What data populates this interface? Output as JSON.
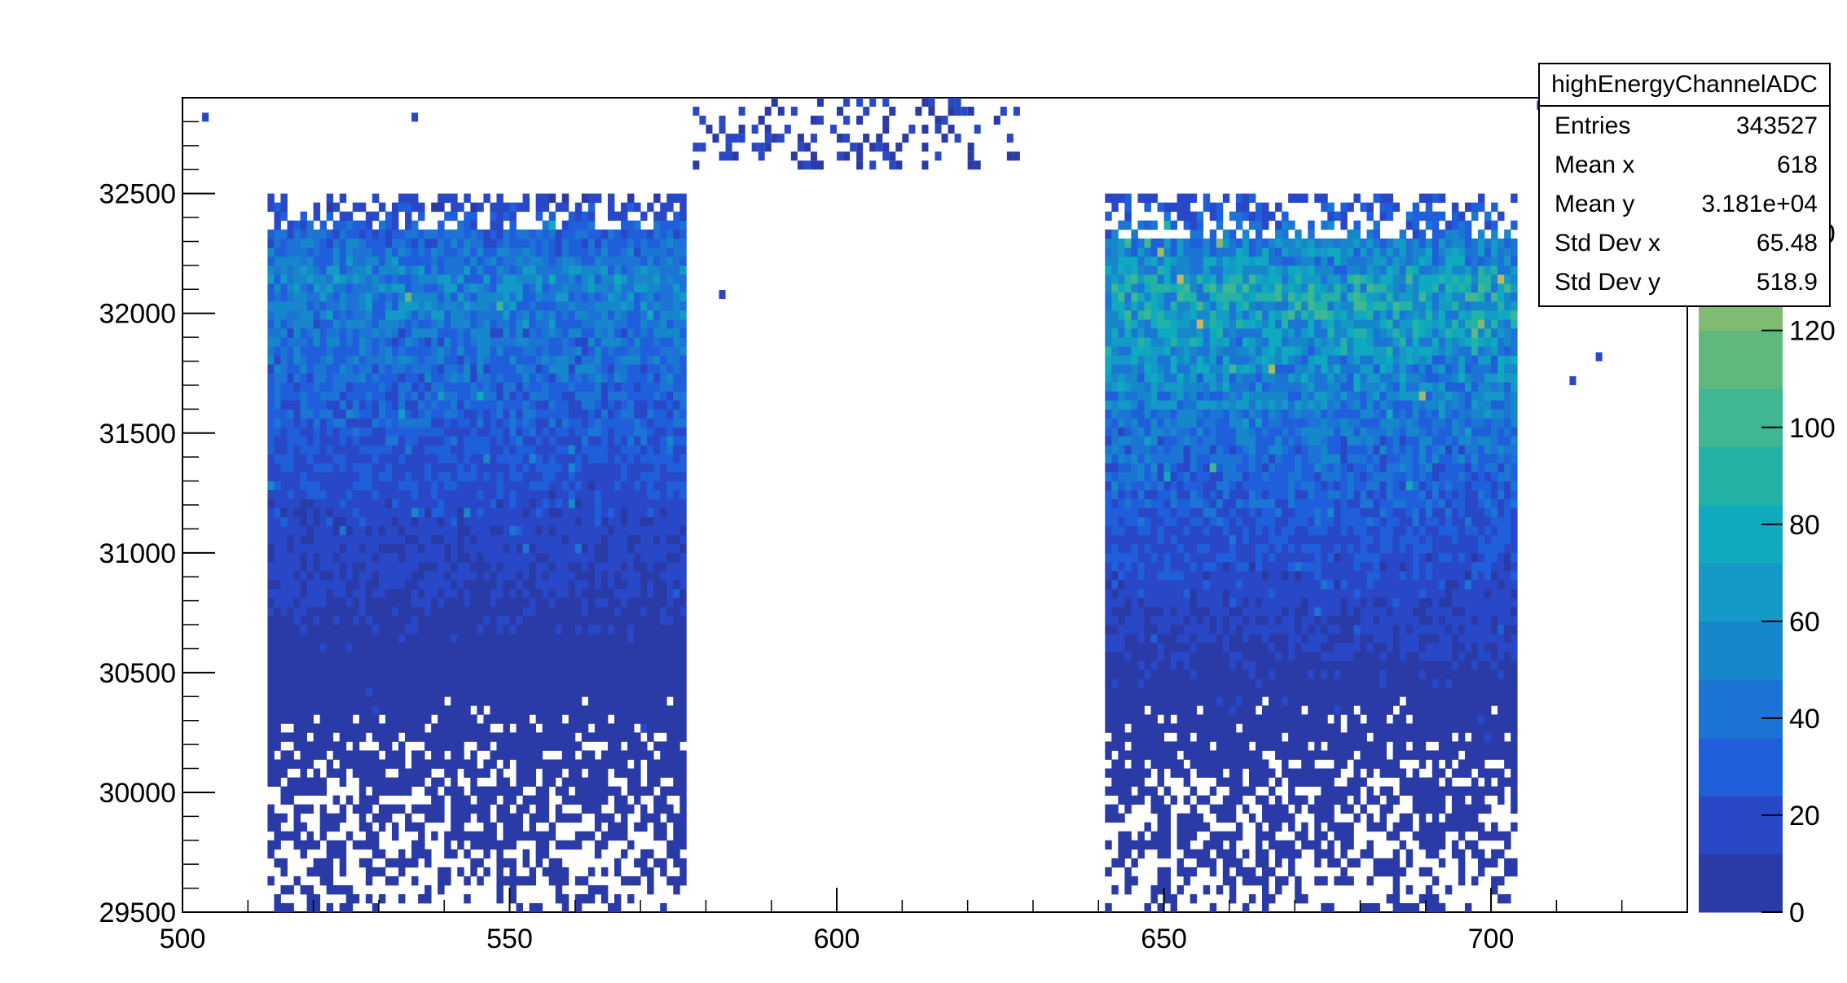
{
  "stats": {
    "title": "highEnergyChannelADC",
    "rows": [
      {
        "label": "Entries",
        "value": "343527"
      },
      {
        "label": "Mean x",
        "value": "618"
      },
      {
        "label": "Mean y",
        "value": "3.181e+04"
      },
      {
        "label": "Std Dev x",
        "value": "65.48"
      },
      {
        "label": "Std Dev y",
        "value": "518.9"
      }
    ]
  },
  "chart_data": {
    "type": "heatmap",
    "title": "",
    "xlabel": "",
    "ylabel": "",
    "xlim": [
      500,
      730
    ],
    "ylim": [
      29500,
      32900
    ],
    "x_ticks": [
      500,
      550,
      600,
      650,
      700
    ],
    "y_ticks": [
      29500,
      30000,
      30500,
      31000,
      31500,
      32000,
      32500
    ],
    "z_range": [
      0,
      168
    ],
    "z_ticks": [
      0,
      20,
      40,
      60,
      80,
      100,
      120,
      140
    ],
    "grid": false,
    "palette": [
      "#2a3aa6",
      "#2848c8",
      "#1f5fdb",
      "#1c74d4",
      "#1787cc",
      "#149ac6",
      "#0fa9c0",
      "#22b2a6",
      "#3fb792",
      "#5fb97f",
      "#80bb72",
      "#a2bb67",
      "#c1b95e",
      "#d9b457"
    ],
    "regions": [
      {
        "x_range": [
          513,
          577
        ],
        "y_range": [
          29500,
          32500
        ],
        "peak_y": 32150,
        "peak_z": 110
      },
      {
        "x_range": [
          641,
          704
        ],
        "y_range": [
          29500,
          32500
        ],
        "peak_y": 32100,
        "peak_z": 165
      }
    ],
    "sparse_top_x_range": [
      577,
      628
    ]
  }
}
